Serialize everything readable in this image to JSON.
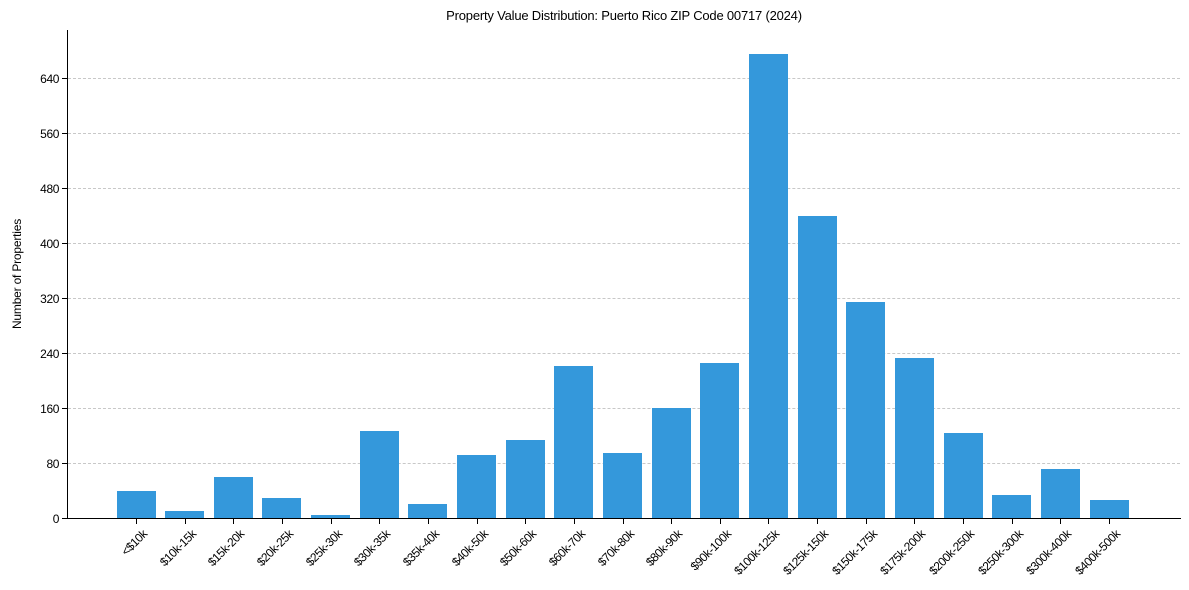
{
  "chart_data": {
    "type": "bar",
    "title": "Property Value Distribution: Puerto Rico ZIP Code 00717 (2024)",
    "xlabel": "",
    "ylabel": "Number of Properties",
    "ylim": [
      0,
      710
    ],
    "yticks": [
      0,
      80,
      160,
      240,
      320,
      400,
      480,
      560,
      640
    ],
    "grid": "y, dashed",
    "bar_color": "#3498db",
    "categories": [
      "<$10k",
      "$10k-15k",
      "$15k-20k",
      "$20k-25k",
      "$25k-30k",
      "$30k-35k",
      "$35k-40k",
      "$40k-50k",
      "$50k-60k",
      "$60k-70k",
      "$70k-80k",
      "$80k-90k",
      "$90k-100k",
      "$100k-125k",
      "$125k-150k",
      "$150k-175k",
      "$175k-200k",
      "$200k-250k",
      "$250k-300k",
      "$300k-400k",
      "$400k-500k"
    ],
    "values": [
      39,
      10,
      60,
      29,
      4,
      127,
      20,
      92,
      113,
      221,
      95,
      160,
      225,
      675,
      439,
      314,
      233,
      124,
      33,
      71,
      26
    ]
  }
}
